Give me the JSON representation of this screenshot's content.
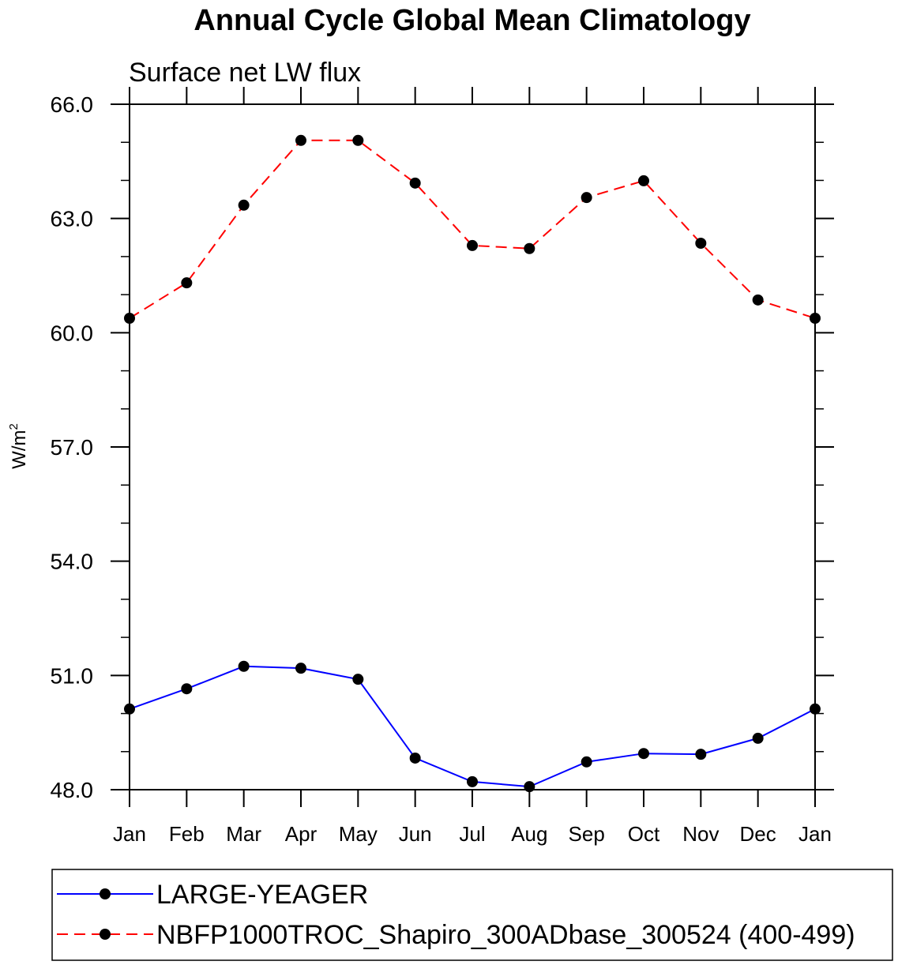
{
  "chart_data": {
    "type": "line",
    "title": "Annual Cycle Global Mean Climatology",
    "subtitle": "Surface net LW flux",
    "ylabel": "W/m",
    "ylabel_superscript": "2",
    "xlabel": "",
    "ylim": [
      48,
      66
    ],
    "yticks": [
      "48.0",
      "51.0",
      "54.0",
      "57.0",
      "60.0",
      "63.0",
      "66.0"
    ],
    "yticks_values": [
      48,
      51,
      54,
      57,
      60,
      63,
      66
    ],
    "yminor_step": 1,
    "categories": [
      "Jan",
      "Feb",
      "Mar",
      "Apr",
      "May",
      "Jun",
      "Jul",
      "Aug",
      "Sep",
      "Oct",
      "Nov",
      "Dec",
      "Jan"
    ],
    "grid": false,
    "legend_position": "bottom",
    "series": [
      {
        "name": "LARGE-YEAGER",
        "color": "#0000ff",
        "dashed": false,
        "values": [
          50.12,
          50.65,
          51.24,
          51.19,
          50.9,
          48.83,
          48.21,
          48.08,
          48.73,
          48.95,
          48.93,
          49.35,
          50.12
        ]
      },
      {
        "name": "NBFP1000TROC_Shapiro_300ADbase_300524 (400-499)",
        "color": "#ff0000",
        "dashed": true,
        "values": [
          60.38,
          61.31,
          63.35,
          65.05,
          65.05,
          63.93,
          62.29,
          62.21,
          63.55,
          63.99,
          62.35,
          60.86,
          60.38
        ]
      }
    ]
  }
}
